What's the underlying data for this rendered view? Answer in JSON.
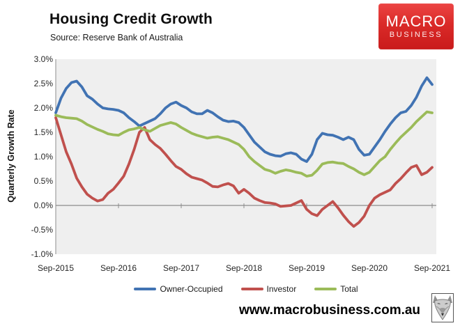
{
  "header": {
    "title": "Housing Credit Growth",
    "subtitle": "Source: Reserve Bank of Australia"
  },
  "logo": {
    "line1": "MACRO",
    "line2": "BUSINESS",
    "background_color": "#d92524",
    "text_color": "#ffffff"
  },
  "footer": {
    "website": "www.macrobusiness.com.au",
    "wolf_icon": "wolf-face-sketch"
  },
  "chart_data": {
    "type": "line",
    "title": "Housing Credit Growth",
    "subtitle": "Source: Reserve Bank of Australia",
    "ylabel": "Quarterly Growth Rate",
    "xlabel": "",
    "ylim": [
      -1.0,
      3.0
    ],
    "y_tick_labels": [
      "3.0%",
      "2.5%",
      "2.0%",
      "1.5%",
      "1.0%",
      "0.5%",
      "0.0%",
      "-0.5%",
      "-1.0%"
    ],
    "x_tick_labels": [
      "Sep-2015",
      "Sep-2016",
      "Sep-2017",
      "Sep-2018",
      "Sep-2019",
      "Sep-2020",
      "Sep-2021"
    ],
    "x_frequency": "monthly, Sep-2015 to Sep-2021 (73 points)",
    "grid": "zero line only",
    "plot_background": "#efefef",
    "axis_color": "#8c8c8c",
    "legend_position": "bottom",
    "series": [
      {
        "name": "Owner-Occupied",
        "color": "#4173b3",
        "values": [
          1.9,
          2.2,
          2.4,
          2.52,
          2.55,
          2.43,
          2.25,
          2.18,
          2.08,
          2.0,
          1.98,
          1.97,
          1.95,
          1.9,
          1.8,
          1.72,
          1.63,
          1.68,
          1.73,
          1.78,
          1.88,
          2.0,
          2.08,
          2.12,
          2.05,
          2.0,
          1.92,
          1.88,
          1.88,
          1.95,
          1.9,
          1.82,
          1.75,
          1.72,
          1.73,
          1.7,
          1.6,
          1.45,
          1.3,
          1.2,
          1.1,
          1.05,
          1.02,
          1.01,
          1.06,
          1.08,
          1.05,
          0.95,
          0.9,
          1.05,
          1.35,
          1.48,
          1.45,
          1.44,
          1.4,
          1.35,
          1.4,
          1.35,
          1.15,
          1.03,
          1.05,
          1.2,
          1.35,
          1.52,
          1.67,
          1.8,
          1.9,
          1.93,
          2.05,
          2.22,
          2.45,
          2.62,
          2.48
        ]
      },
      {
        "name": "Investor",
        "color": "#c0504d",
        "values": [
          1.8,
          1.45,
          1.1,
          0.85,
          0.56,
          0.38,
          0.23,
          0.15,
          0.09,
          0.12,
          0.25,
          0.33,
          0.46,
          0.6,
          0.85,
          1.15,
          1.5,
          1.6,
          1.35,
          1.25,
          1.17,
          1.05,
          0.92,
          0.8,
          0.74,
          0.65,
          0.58,
          0.55,
          0.52,
          0.46,
          0.39,
          0.38,
          0.42,
          0.45,
          0.4,
          0.25,
          0.33,
          0.25,
          0.15,
          0.1,
          0.06,
          0.05,
          0.03,
          -0.02,
          -0.01,
          0.0,
          0.05,
          0.1,
          -0.08,
          -0.17,
          -0.21,
          -0.08,
          0.0,
          0.08,
          -0.05,
          -0.2,
          -0.33,
          -0.43,
          -0.35,
          -0.22,
          0.0,
          0.15,
          0.22,
          0.27,
          0.32,
          0.45,
          0.55,
          0.67,
          0.78,
          0.82,
          0.63,
          0.68,
          0.78
        ]
      },
      {
        "name": "Total",
        "color": "#9bbb59",
        "values": [
          1.85,
          1.82,
          1.8,
          1.79,
          1.78,
          1.73,
          1.66,
          1.61,
          1.56,
          1.52,
          1.47,
          1.45,
          1.44,
          1.5,
          1.55,
          1.57,
          1.6,
          1.55,
          1.52,
          1.58,
          1.64,
          1.67,
          1.7,
          1.67,
          1.6,
          1.54,
          1.48,
          1.44,
          1.41,
          1.38,
          1.4,
          1.41,
          1.38,
          1.35,
          1.3,
          1.25,
          1.15,
          1.0,
          0.9,
          0.82,
          0.74,
          0.71,
          0.66,
          0.7,
          0.73,
          0.71,
          0.68,
          0.66,
          0.6,
          0.62,
          0.72,
          0.85,
          0.88,
          0.89,
          0.87,
          0.86,
          0.8,
          0.75,
          0.68,
          0.63,
          0.68,
          0.8,
          0.92,
          1.0,
          1.15,
          1.28,
          1.4,
          1.5,
          1.6,
          1.72,
          1.82,
          1.92,
          1.9
        ]
      }
    ]
  }
}
